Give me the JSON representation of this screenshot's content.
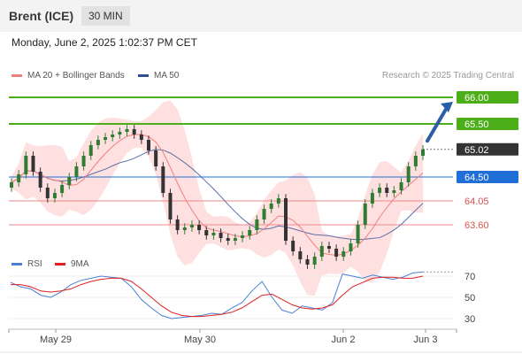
{
  "header": {
    "title": "Brent (ICE)",
    "timeframe": "30 MIN"
  },
  "timestamp": "Monday, June 2, 2025 1:02:37 PM CET",
  "credit": "Research © 2025 Trading Central",
  "legend_main": [
    {
      "label": "MA 20 + Bollinger Bands",
      "color": "#f08080"
    },
    {
      "label": "MA 50",
      "color": "#2f4f8f"
    }
  ],
  "legend_rsi": [
    {
      "label": "RSI",
      "color": "#4a7fd4"
    },
    {
      "label": "9MA",
      "color": "#e02020"
    }
  ],
  "colors": {
    "resistance": "#4caf1a",
    "pivot": "#1f6fd6",
    "support": "#d9534f",
    "last": "#333333",
    "bands": "#ffd6d6",
    "arrow": "#2a5fa8"
  },
  "chart_data": [
    {
      "type": "line",
      "ylim": [
        63.0,
        66.25
      ],
      "x_ticks": [
        "May 29",
        "May 30",
        "Jun 2",
        "Jun 3"
      ],
      "levels": [
        {
          "value": 66.0,
          "label": "66.00",
          "kind": "resistance"
        },
        {
          "value": 65.5,
          "label": "65.50",
          "kind": "resistance"
        },
        {
          "value": 65.02,
          "label": "65.02",
          "kind": "last"
        },
        {
          "value": 64.5,
          "label": "64.50",
          "kind": "pivot"
        },
        {
          "value": 64.05,
          "label": "64.05",
          "kind": "support"
        },
        {
          "value": 63.6,
          "label": "63.60",
          "kind": "support"
        }
      ],
      "series": [
        {
          "values": [
            64.4,
            64.55,
            64.9,
            64.6,
            64.3,
            64.1,
            64.2,
            64.35,
            64.5,
            64.7,
            64.9,
            65.1,
            65.2,
            65.25,
            65.3,
            65.35,
            65.4,
            65.3,
            65.2,
            65.0,
            64.7,
            64.2,
            63.7,
            63.5,
            63.55,
            63.6,
            63.5,
            63.4,
            63.45,
            63.35,
            63.3,
            63.35,
            63.4,
            63.5,
            63.7,
            63.9,
            64.0,
            64.1,
            63.3,
            63.1,
            62.95,
            62.85,
            63.0,
            63.2,
            63.15,
            63.0,
            63.1,
            63.25,
            63.6,
            64.0,
            64.2,
            64.3,
            64.2,
            64.25,
            64.4,
            64.7,
            64.9,
            65.02
          ]
        }
      ]
    },
    {
      "type": "line",
      "ylim": [
        20,
        80
      ],
      "y_ticks": [
        30,
        50,
        70
      ],
      "series": [
        {
          "name": "RSI",
          "values": [
            64,
            60,
            58,
            52,
            50,
            55,
            62,
            66,
            68,
            70,
            69,
            68,
            60,
            48,
            40,
            33,
            30,
            31,
            32,
            33,
            35,
            34,
            40,
            45,
            56,
            65,
            50,
            38,
            35,
            42,
            40,
            38,
            45,
            72,
            70,
            68,
            71,
            69,
            67,
            69,
            73,
            74
          ]
        },
        {
          "name": "9MA",
          "values": [
            62,
            62,
            60,
            56,
            55,
            56,
            58,
            62,
            65,
            67,
            68,
            68,
            65,
            58,
            50,
            42,
            36,
            33,
            32,
            32,
            33,
            34,
            36,
            40,
            46,
            52,
            53,
            48,
            43,
            40,
            39,
            40,
            43,
            52,
            60,
            64,
            68,
            69,
            69,
            68,
            68,
            70
          ]
        }
      ]
    }
  ]
}
